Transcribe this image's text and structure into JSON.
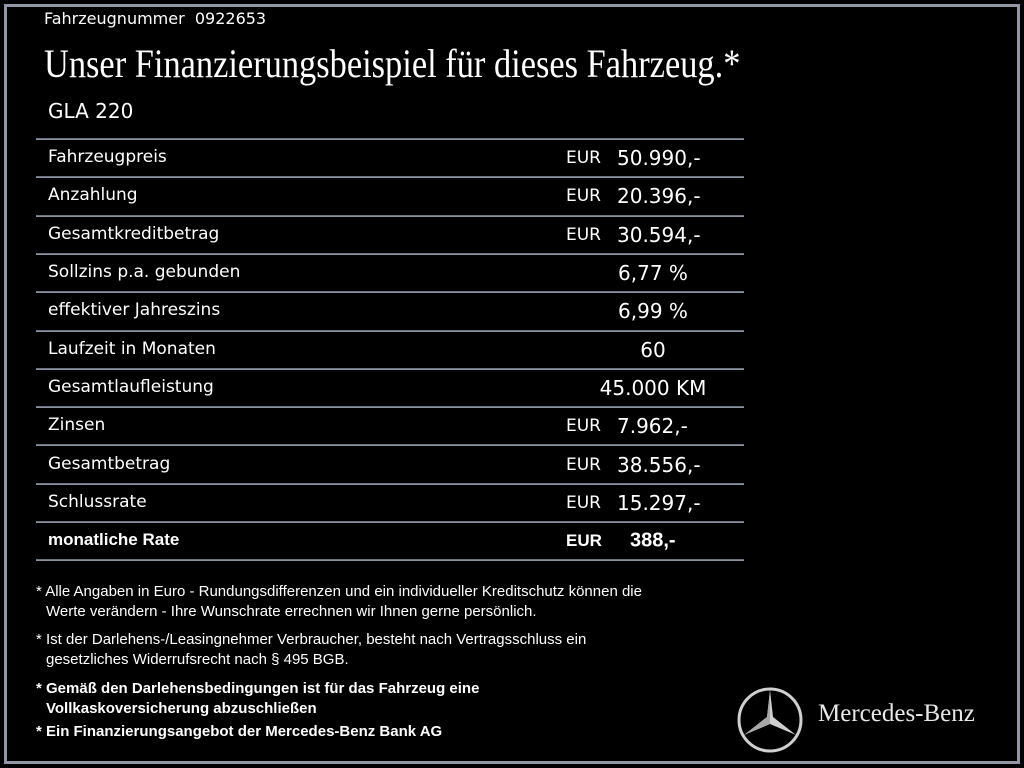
{
  "header": {
    "vehicle_number_label": "Fahrzeugnummer",
    "vehicle_number": "0922653",
    "title": "Unser Finanzierungsbeispiel für dieses Fahrzeug.*",
    "model": "GLA 220"
  },
  "table": {
    "rows": [
      {
        "label": "Fahrzeugpreis",
        "currency": "EUR",
        "value": "50.990,-"
      },
      {
        "label": "Anzahlung",
        "currency": "EUR",
        "value": "20.396,-"
      },
      {
        "label": "Gesamtkreditbetrag",
        "currency": "EUR",
        "value": "30.594,-"
      },
      {
        "label": "Sollzins p.a. gebunden",
        "value": "6,77 %"
      },
      {
        "label": "effektiver Jahreszins",
        "value": "6,99 %"
      },
      {
        "label": "Laufzeit in Monaten",
        "value": "60"
      },
      {
        "label": "Gesamtlaufleistung",
        "value": "45.000 KM"
      },
      {
        "label": "Zinsen",
        "currency": "EUR",
        "value": "7.962,-"
      },
      {
        "label": "Gesamtbetrag",
        "currency": "EUR",
        "value": "38.556,-"
      },
      {
        "label": "Schlussrate",
        "currency": "EUR",
        "value": "15.297,-"
      },
      {
        "label": "monatliche Rate",
        "currency": "EUR",
        "value": "388,-",
        "bold": true
      }
    ]
  },
  "footnotes": [
    {
      "marker": "*",
      "lines": [
        "Alle Angaben in Euro - Rundungsdifferenzen und ein individueller Kreditschutz können die",
        "Werte verändern - Ihre Wunschrate errechnen wir Ihnen gerne persönlich."
      ]
    },
    {
      "marker": "*",
      "lines": [
        "Ist der Darlehens-/Leasingnehmer Verbraucher, besteht nach Vertragsschluss ein",
        "gesetzliches Widerrufsrecht nach § 495 BGB."
      ]
    },
    {
      "marker": "*",
      "lines": [
        "Gemäß den Darlehensbedingungen ist für das Fahrzeug eine",
        "Vollkaskoversicherung abzuschließen"
      ],
      "bold": true
    },
    {
      "marker": "*",
      "lines": [
        "Ein Finanzierungsangebot der Mercedes-Benz Bank AG"
      ],
      "bold": true
    }
  ],
  "brand": "Mercedes-Benz"
}
